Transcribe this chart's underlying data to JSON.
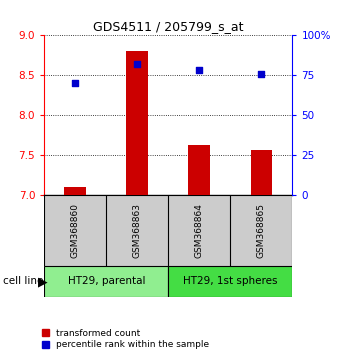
{
  "title": "GDS4511 / 205799_s_at",
  "samples": [
    "GSM368860",
    "GSM368863",
    "GSM368864",
    "GSM368865"
  ],
  "transformed_count": [
    7.1,
    8.8,
    7.62,
    7.56
  ],
  "percentile_rank": [
    70,
    82,
    78,
    76
  ],
  "ylim_left": [
    7.0,
    9.0
  ],
  "ylim_right": [
    0,
    100
  ],
  "yticks_left": [
    7.0,
    7.5,
    8.0,
    8.5,
    9.0
  ],
  "yticks_right": [
    0,
    25,
    50,
    75,
    100
  ],
  "ytick_labels_right": [
    "0",
    "25",
    "50",
    "75",
    "100%"
  ],
  "bar_color": "#cc0000",
  "dot_color": "#0000cc",
  "cell_line_groups": [
    {
      "label": "HT29, parental",
      "samples": [
        0,
        1
      ],
      "color": "#90ee90"
    },
    {
      "label": "HT29, 1st spheres",
      "samples": [
        2,
        3
      ],
      "color": "#44dd44"
    }
  ],
  "legend_bar_label": "transformed count",
  "legend_dot_label": "percentile rank within the sample",
  "cell_line_label": "cell line",
  "sample_box_color": "#cccccc",
  "bar_width": 0.35,
  "background_color": "#ffffff"
}
